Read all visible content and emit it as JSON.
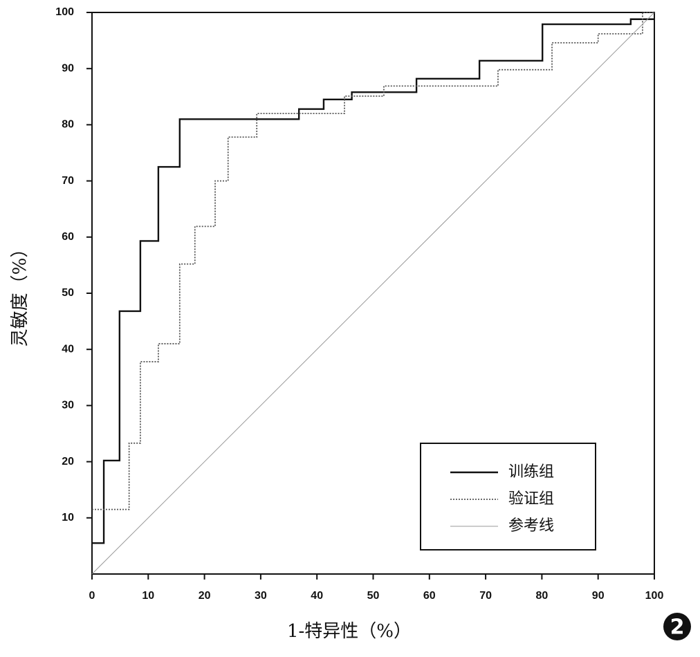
{
  "chart_data": {
    "type": "line",
    "y_label": "灵敏度（%）",
    "x_label": "1-特异性（%）",
    "figure_label": "2",
    "xlim": [
      0,
      100
    ],
    "ylim": [
      0,
      100
    ],
    "xticks": [
      0,
      10,
      20,
      30,
      40,
      50,
      60,
      70,
      80,
      90,
      100
    ],
    "yticks": [
      10,
      20,
      30,
      40,
      50,
      60,
      70,
      80,
      90,
      100
    ],
    "legend": "lower right",
    "series": [
      {
        "name": "训练组",
        "color": "#111111",
        "dash": "none",
        "width": 2.4,
        "x": [
          0,
          2.1,
          2.1,
          4.9,
          4.9,
          8.6,
          8.6,
          11.8,
          11.8,
          15.6,
          15.6,
          36.8,
          36.8,
          41.2,
          41.2,
          46.2,
          46.2,
          57.7,
          57.7,
          68.9,
          68.9,
          80.1,
          80.1,
          95.8,
          95.8,
          100
        ],
        "values": [
          5.5,
          5.5,
          20.2,
          20.2,
          46.8,
          46.8,
          59.3,
          59.3,
          72.5,
          72.5,
          81,
          81,
          82.8,
          82.8,
          84.5,
          84.5,
          85.8,
          85.8,
          88.2,
          88.2,
          91.4,
          91.4,
          97.9,
          97.9,
          98.8,
          98.8
        ]
      },
      {
        "name": "验证组",
        "color": "#555555",
        "dash": "2,2",
        "width": 1.8,
        "x": [
          0,
          6.6,
          6.6,
          8.6,
          8.6,
          11.8,
          11.8,
          15.6,
          15.6,
          18.3,
          18.3,
          21.9,
          21.9,
          24.2,
          24.2,
          29.3,
          29.3,
          44.9,
          44.9,
          51.9,
          51.9,
          72.2,
          72.2,
          81.8,
          81.8,
          90,
          90,
          97.9,
          97.9,
          100
        ],
        "values": [
          11.5,
          11.5,
          23.3,
          23.3,
          37.8,
          37.8,
          41,
          41,
          55.2,
          55.2,
          61.9,
          61.9,
          70,
          70,
          77.8,
          77.8,
          82,
          82,
          85.1,
          85.1,
          86.9,
          86.9,
          89.8,
          89.8,
          94.6,
          94.6,
          96.2,
          96.2,
          100,
          100
        ]
      },
      {
        "name": "参考线",
        "color": "#999999",
        "dash": "none",
        "width": 1,
        "x": [
          0,
          100
        ],
        "values": [
          0,
          100
        ]
      }
    ]
  }
}
